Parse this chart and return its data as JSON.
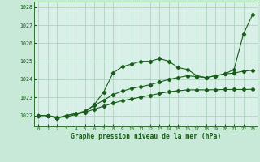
{
  "title": "Graphe pression niveau de la mer (hPa)",
  "outer_bg": "#c8e8d8",
  "plot_bg": "#d8f0e8",
  "grid_color": "#a8ccb8",
  "line_color": "#1a5c1a",
  "spine_color": "#2d6e2d",
  "ylim": [
    1021.4,
    1028.3
  ],
  "xlim": [
    -0.5,
    23.5
  ],
  "yticks": [
    1022,
    1023,
    1024,
    1025,
    1026,
    1027,
    1028
  ],
  "xticks": [
    0,
    1,
    2,
    3,
    4,
    5,
    6,
    7,
    8,
    9,
    10,
    11,
    12,
    13,
    14,
    15,
    16,
    17,
    18,
    19,
    20,
    21,
    22,
    23
  ],
  "series1": [
    1022.0,
    1022.0,
    1021.85,
    1022.0,
    1022.1,
    1022.2,
    1022.6,
    1023.3,
    1024.35,
    1024.7,
    1024.85,
    1025.0,
    1025.0,
    1025.15,
    1025.0,
    1024.65,
    1024.55,
    1024.2,
    1024.1,
    1024.2,
    1024.3,
    1024.55,
    1026.5,
    1027.6
  ],
  "series2": [
    1022.0,
    1022.0,
    1021.85,
    1022.0,
    1022.1,
    1022.25,
    1022.55,
    1022.85,
    1023.15,
    1023.35,
    1023.5,
    1023.6,
    1023.7,
    1023.85,
    1024.0,
    1024.1,
    1024.2,
    1024.15,
    1024.1,
    1024.2,
    1024.3,
    1024.35,
    1024.45,
    1024.5
  ],
  "series3": [
    1022.0,
    1022.0,
    1021.9,
    1021.92,
    1022.05,
    1022.18,
    1022.35,
    1022.52,
    1022.68,
    1022.82,
    1022.92,
    1023.02,
    1023.12,
    1023.22,
    1023.32,
    1023.37,
    1023.42,
    1023.42,
    1023.42,
    1023.43,
    1023.44,
    1023.44,
    1023.44,
    1023.45
  ]
}
